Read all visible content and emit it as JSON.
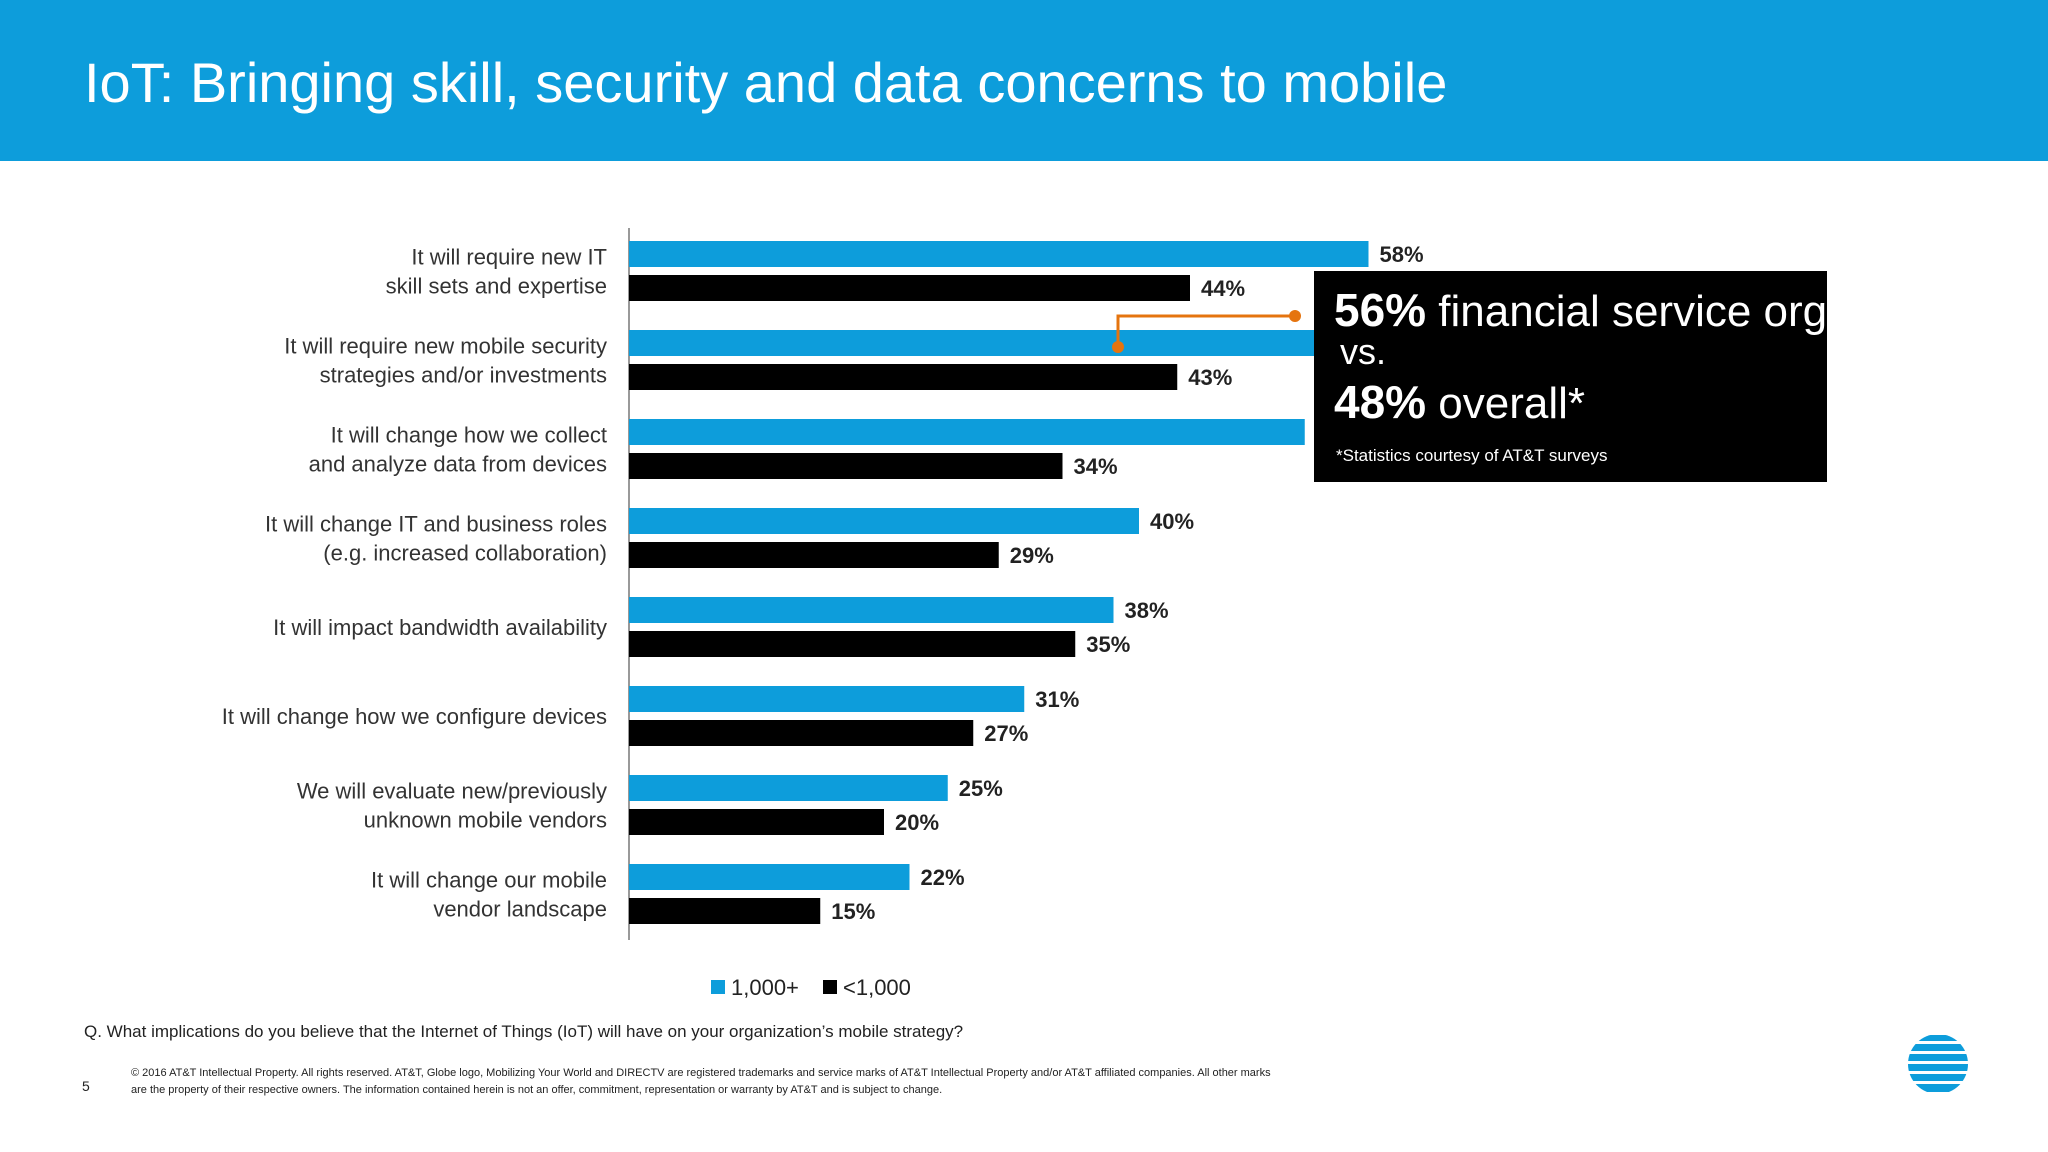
{
  "slide": {
    "title": "IoT: Bringing skill, security and data concerns to mobile",
    "question": "Q. What implications do you believe that the Internet of Things (IoT) will have on your organization’s mobile strategy?",
    "page_number": "5",
    "copyright": "© 2016 AT&T Intellectual Property. All rights reserved. AT&T, Globe logo, Mobilizing Your World and DIRECTV are registered trademarks and service marks of AT&T Intellectual Property and/or AT&T affiliated companies. All other marks are the property of their respective owners. The information contained herein is not an offer, commitment, representation or warranty by AT&T and is subject to change."
  },
  "callout": {
    "stat1_value": "56%",
    "stat1_text": " financial service orgs",
    "vs_text": "vs.",
    "stat2_value": "48%",
    "stat2_text": " overall*",
    "footnote": "*Statistics courtesy of AT&T surveys"
  },
  "colors": {
    "header_blue": "#0d9ddb",
    "bar_blue": "#0d9ddb",
    "bar_black": "#000000",
    "connector_orange": "#e5740f"
  },
  "chart_data": {
    "type": "bar",
    "orientation": "horizontal",
    "categories": [
      [
        "It will require new IT",
        "skill sets and expertise"
      ],
      [
        "It will require new mobile security",
        "strategies and/or investments"
      ],
      [
        "It will change how we collect",
        "and analyze data from devices"
      ],
      [
        "It will change IT and business roles",
        "(e.g. increased collaboration)"
      ],
      [
        "It will impact bandwidth availability"
      ],
      [
        "It will change how we configure devices"
      ],
      [
        "We will evaluate new/previously",
        "unknown mobile vendors"
      ],
      [
        "It will change our mobile",
        "vendor landscape"
      ]
    ],
    "series": [
      {
        "name": "1,000+",
        "color": "#0d9ddb",
        "values": [
          58,
          55,
          53,
          40,
          38,
          31,
          25,
          22
        ]
      },
      {
        "name": "<1,000",
        "color": "#000000",
        "values": [
          44,
          43,
          34,
          29,
          35,
          27,
          20,
          15
        ]
      }
    ],
    "value_suffix": "%",
    "legend_position": "bottom",
    "grid": false
  }
}
